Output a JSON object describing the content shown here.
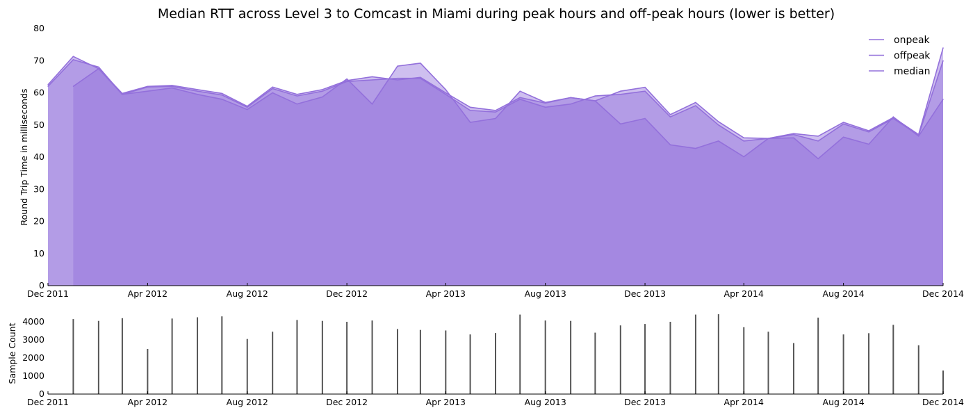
{
  "chart_data": [
    {
      "type": "area",
      "title": "Median RTT across Level 3 to Comcast in Miami during peak hours and off-peak hours (lower is better)",
      "ylabel": "Round Trip Time in milliseconds",
      "xlabel": "",
      "ylim": [
        0,
        80
      ],
      "yticks": [
        0,
        10,
        20,
        30,
        40,
        50,
        60,
        70,
        80
      ],
      "xlim": [
        "2011-12-01",
        "2014-12-01"
      ],
      "xticks": [
        {
          "date": "2011-12-01",
          "label": "Dec 2011"
        },
        {
          "date": "2012-04-01",
          "label": "Apr 2012"
        },
        {
          "date": "2012-08-01",
          "label": "Aug 2012"
        },
        {
          "date": "2012-12-01",
          "label": "Dec 2012"
        },
        {
          "date": "2013-04-01",
          "label": "Apr 2013"
        },
        {
          "date": "2013-08-01",
          "label": "Aug 2013"
        },
        {
          "date": "2013-12-01",
          "label": "Dec 2013"
        },
        {
          "date": "2014-04-01",
          "label": "Apr 2014"
        },
        {
          "date": "2014-08-01",
          "label": "Aug 2014"
        },
        {
          "date": "2014-12-01",
          "label": "Dec 2014"
        }
      ],
      "legend_position": "top-right",
      "grid": "horizontal",
      "series": [
        {
          "name": "onpeak",
          "color": "#9370DB",
          "points": [
            [
              "2012-01-01",
              62.0
            ],
            [
              "2012-02-01",
              67.5
            ],
            [
              "2012-03-01",
              59.5
            ],
            [
              "2012-04-01",
              60.5
            ],
            [
              "2012-05-01",
              61.5
            ],
            [
              "2012-06-01",
              59.5
            ],
            [
              "2012-07-01",
              58.0
            ],
            [
              "2012-08-01",
              54.8
            ],
            [
              "2012-09-01",
              60.0
            ],
            [
              "2012-10-01",
              56.5
            ],
            [
              "2012-11-01",
              58.7
            ],
            [
              "2012-12-01",
              64.3
            ],
            [
              "2013-01-01",
              56.5
            ],
            [
              "2013-02-01",
              68.3
            ],
            [
              "2013-03-01",
              69.2
            ],
            [
              "2013-04-01",
              61.0
            ],
            [
              "2013-05-01",
              50.8
            ],
            [
              "2013-06-01",
              52.0
            ],
            [
              "2013-07-01",
              60.5
            ],
            [
              "2013-08-01",
              57.0
            ],
            [
              "2013-09-01",
              58.5
            ],
            [
              "2013-10-01",
              57.5
            ],
            [
              "2013-11-01",
              50.3
            ],
            [
              "2013-12-01",
              52.0
            ],
            [
              "2014-01-01",
              43.8
            ],
            [
              "2014-02-01",
              42.7
            ],
            [
              "2014-03-01",
              45.0
            ],
            [
              "2014-04-01",
              40.1
            ],
            [
              "2014-05-01",
              45.8
            ],
            [
              "2014-06-01",
              46.0
            ],
            [
              "2014-07-01",
              39.5
            ],
            [
              "2014-08-01",
              46.2
            ],
            [
              "2014-09-01",
              44.0
            ],
            [
              "2014-10-01",
              52.5
            ],
            [
              "2014-11-01",
              46.5
            ],
            [
              "2014-12-01",
              58.0
            ]
          ]
        },
        {
          "name": "offpeak",
          "color": "#9370DB",
          "points": [
            [
              "2011-12-01",
              62.5
            ],
            [
              "2012-01-01",
              71.3
            ],
            [
              "2012-02-01",
              67.5
            ],
            [
              "2012-03-01",
              59.8
            ],
            [
              "2012-04-01",
              62.0
            ],
            [
              "2012-05-01",
              62.3
            ],
            [
              "2012-06-01",
              61.0
            ],
            [
              "2012-07-01",
              59.8
            ],
            [
              "2012-08-01",
              55.8
            ],
            [
              "2012-09-01",
              61.8
            ],
            [
              "2012-10-01",
              59.5
            ],
            [
              "2012-11-01",
              61.0
            ],
            [
              "2012-12-01",
              63.8
            ],
            [
              "2013-01-01",
              65.0
            ],
            [
              "2013-02-01",
              64.0
            ],
            [
              "2013-03-01",
              64.8
            ],
            [
              "2013-04-01",
              60.0
            ],
            [
              "2013-05-01",
              55.5
            ],
            [
              "2013-06-01",
              54.5
            ],
            [
              "2013-07-01",
              58.5
            ],
            [
              "2013-08-01",
              56.8
            ],
            [
              "2013-09-01",
              58.5
            ],
            [
              "2013-10-01",
              57.5
            ],
            [
              "2013-11-01",
              60.5
            ],
            [
              "2013-12-01",
              61.7
            ],
            [
              "2014-01-01",
              53.2
            ],
            [
              "2014-02-01",
              57.0
            ],
            [
              "2014-03-01",
              51.0
            ],
            [
              "2014-04-01",
              46.0
            ],
            [
              "2014-05-01",
              45.8
            ],
            [
              "2014-06-01",
              47.3
            ],
            [
              "2014-07-01",
              46.5
            ],
            [
              "2014-08-01",
              50.8
            ],
            [
              "2014-09-01",
              48.2
            ],
            [
              "2014-10-01",
              52.3
            ],
            [
              "2014-11-01",
              47.0
            ],
            [
              "2014-12-01",
              74.0
            ]
          ]
        },
        {
          "name": "median",
          "color": "#9370DB",
          "points": [
            [
              "2011-12-01",
              62.0
            ],
            [
              "2012-01-01",
              70.3
            ],
            [
              "2012-02-01",
              68.0
            ],
            [
              "2012-03-01",
              59.5
            ],
            [
              "2012-04-01",
              61.8
            ],
            [
              "2012-05-01",
              62.0
            ],
            [
              "2012-06-01",
              60.5
            ],
            [
              "2012-07-01",
              59.3
            ],
            [
              "2012-08-01",
              55.5
            ],
            [
              "2012-09-01",
              61.3
            ],
            [
              "2012-10-01",
              59.0
            ],
            [
              "2012-11-01",
              60.5
            ],
            [
              "2012-12-01",
              63.5
            ],
            [
              "2013-01-01",
              64.0
            ],
            [
              "2013-02-01",
              64.5
            ],
            [
              "2013-03-01",
              64.5
            ],
            [
              "2013-04-01",
              59.5
            ],
            [
              "2013-05-01",
              54.5
            ],
            [
              "2013-06-01",
              54.0
            ],
            [
              "2013-07-01",
              58.0
            ],
            [
              "2013-08-01",
              55.5
            ],
            [
              "2013-09-01",
              56.5
            ],
            [
              "2013-10-01",
              59.0
            ],
            [
              "2013-11-01",
              59.5
            ],
            [
              "2013-12-01",
              60.5
            ],
            [
              "2014-01-01",
              52.5
            ],
            [
              "2014-02-01",
              56.0
            ],
            [
              "2014-03-01",
              50.0
            ],
            [
              "2014-04-01",
              45.0
            ],
            [
              "2014-05-01",
              45.8
            ],
            [
              "2014-06-01",
              47.0
            ],
            [
              "2014-07-01",
              45.0
            ],
            [
              "2014-08-01",
              50.3
            ],
            [
              "2014-09-01",
              47.8
            ],
            [
              "2014-10-01",
              52.0
            ],
            [
              "2014-11-01",
              46.8
            ],
            [
              "2014-12-01",
              70.0
            ]
          ]
        }
      ]
    },
    {
      "type": "bar",
      "title": "",
      "ylabel": "Sample Count",
      "xlabel": "",
      "ylim": [
        0,
        4500
      ],
      "yticks": [
        0,
        1000,
        2000,
        3000,
        4000
      ],
      "xlim": [
        "2011-12-01",
        "2014-12-01"
      ],
      "series": [
        {
          "name": "",
          "color": "#555555",
          "points": [
            [
              "2012-01-01",
              4150
            ],
            [
              "2012-02-01",
              4050
            ],
            [
              "2012-03-01",
              4200
            ],
            [
              "2012-04-01",
              2500
            ],
            [
              "2012-05-01",
              4180
            ],
            [
              "2012-06-01",
              4250
            ],
            [
              "2012-07-01",
              4300
            ],
            [
              "2012-08-01",
              3050
            ],
            [
              "2012-09-01",
              3450
            ],
            [
              "2012-10-01",
              4100
            ],
            [
              "2012-11-01",
              4050
            ],
            [
              "2012-12-01",
              4000
            ],
            [
              "2013-01-01",
              4070
            ],
            [
              "2013-02-01",
              3600
            ],
            [
              "2013-03-01",
              3550
            ],
            [
              "2013-04-01",
              3520
            ],
            [
              "2013-05-01",
              3300
            ],
            [
              "2013-06-01",
              3380
            ],
            [
              "2013-07-01",
              4400
            ],
            [
              "2013-08-01",
              4070
            ],
            [
              "2013-09-01",
              4050
            ],
            [
              "2013-10-01",
              3400
            ],
            [
              "2013-11-01",
              3800
            ],
            [
              "2013-12-01",
              3880
            ],
            [
              "2014-01-01",
              4000
            ],
            [
              "2014-02-01",
              4400
            ],
            [
              "2014-03-01",
              4420
            ],
            [
              "2014-04-01",
              3700
            ],
            [
              "2014-05-01",
              3450
            ],
            [
              "2014-06-01",
              2820
            ],
            [
              "2014-07-01",
              4230
            ],
            [
              "2014-08-01",
              3300
            ],
            [
              "2014-09-01",
              3370
            ],
            [
              "2014-10-01",
              3830
            ],
            [
              "2014-11-01",
              2700
            ],
            [
              "2014-12-01",
              1300
            ]
          ]
        }
      ]
    }
  ]
}
